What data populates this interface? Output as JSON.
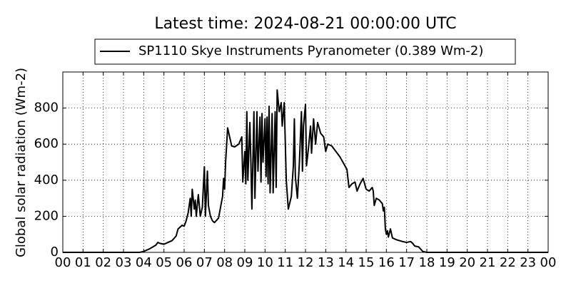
{
  "chart_data": {
    "type": "line",
    "title": "Latest time: 2024-08-21 00:00:00 UTC",
    "ylabel": "Global solar radiation (Wm-2)",
    "xlim": [
      0,
      24
    ],
    "ylim": [
      0,
      1000
    ],
    "grid": true,
    "legend": "top",
    "xticks": [
      {
        "value": 0,
        "label": "00"
      },
      {
        "value": 1,
        "label": "01"
      },
      {
        "value": 2,
        "label": "02"
      },
      {
        "value": 3,
        "label": "03"
      },
      {
        "value": 4,
        "label": "04"
      },
      {
        "value": 5,
        "label": "05"
      },
      {
        "value": 6,
        "label": "06"
      },
      {
        "value": 7,
        "label": "07"
      },
      {
        "value": 8,
        "label": "08"
      },
      {
        "value": 9,
        "label": "09"
      },
      10,
      11,
      12,
      13,
      14,
      15,
      16,
      17,
      18,
      19,
      20,
      21,
      22,
      23,
      {
        "value": 24,
        "label": "00"
      }
    ],
    "yticks": [
      0,
      200,
      400,
      600,
      800
    ],
    "series": [
      {
        "name": "SP1110 Skye Instruments Pyranometer (0.389 Wm-2)",
        "color": "#000000",
        "x": [
          0,
          3.8,
          4.0,
          4.3,
          4.6,
          4.7,
          4.8,
          5.0,
          5.2,
          5.4,
          5.6,
          5.7,
          5.9,
          6.0,
          6.1,
          6.2,
          6.3,
          6.35,
          6.4,
          6.5,
          6.55,
          6.6,
          6.7,
          6.8,
          6.9,
          7.0,
          7.05,
          7.15,
          7.2,
          7.3,
          7.4,
          7.5,
          7.7,
          7.8,
          7.9,
          7.95,
          8.0,
          8.05,
          8.15,
          8.25,
          8.35,
          8.5,
          8.7,
          8.85,
          8.9,
          9.0,
          9.05,
          9.1,
          9.15,
          9.25,
          9.3,
          9.35,
          9.45,
          9.5,
          9.6,
          9.65,
          9.75,
          9.8,
          9.85,
          9.9,
          10.0,
          10.05,
          10.1,
          10.15,
          10.2,
          10.25,
          10.35,
          10.4,
          10.5,
          10.55,
          10.6,
          10.7,
          10.8,
          10.85,
          10.95,
          11.05,
          11.15,
          11.3,
          11.4,
          11.45,
          11.5,
          11.6,
          11.7,
          11.8,
          11.85,
          11.9,
          12.0,
          12.05,
          12.15,
          12.25,
          12.3,
          12.4,
          12.5,
          12.6,
          12.75,
          12.9,
          13.0,
          13.1,
          13.3,
          13.5,
          13.7,
          13.9,
          14.05,
          14.15,
          14.3,
          14.45,
          14.55,
          14.7,
          14.85,
          15.0,
          15.15,
          15.3,
          15.35,
          15.4,
          15.5,
          15.65,
          15.8,
          15.85,
          15.9,
          15.95,
          16.0,
          16.05,
          16.1,
          16.2,
          16.3,
          16.5,
          16.8,
          17.0,
          17.2,
          17.3,
          17.4,
          17.6,
          17.8,
          18.0,
          24
        ],
        "values": [
          0,
          0,
          5,
          20,
          40,
          55,
          50,
          45,
          55,
          65,
          90,
          130,
          150,
          145,
          175,
          220,
          300,
          200,
          350,
          240,
          290,
          200,
          320,
          200,
          250,
          475,
          200,
          450,
          260,
          200,
          175,
          165,
          190,
          250,
          310,
          410,
          350,
          500,
          690,
          640,
          590,
          585,
          600,
          640,
          390,
          560,
          380,
          780,
          400,
          720,
          500,
          240,
          780,
          300,
          780,
          450,
          750,
          390,
          770,
          500,
          740,
          420,
          750,
          380,
          810,
          330,
          770,
          330,
          780,
          360,
          900,
          780,
          830,
          700,
          830,
          400,
          240,
          310,
          480,
          740,
          420,
          300,
          500,
          780,
          450,
          700,
          820,
          480,
          580,
          700,
          550,
          740,
          600,
          720,
          660,
          640,
          560,
          600,
          590,
          560,
          530,
          490,
          460,
          360,
          380,
          390,
          340,
          380,
          410,
          350,
          340,
          360,
          340,
          260,
          300,
          290,
          270,
          230,
          250,
          130,
          100,
          120,
          85,
          130,
          80,
          70,
          60,
          55,
          60,
          50,
          35,
          30,
          5,
          0,
          0
        ]
      }
    ]
  }
}
